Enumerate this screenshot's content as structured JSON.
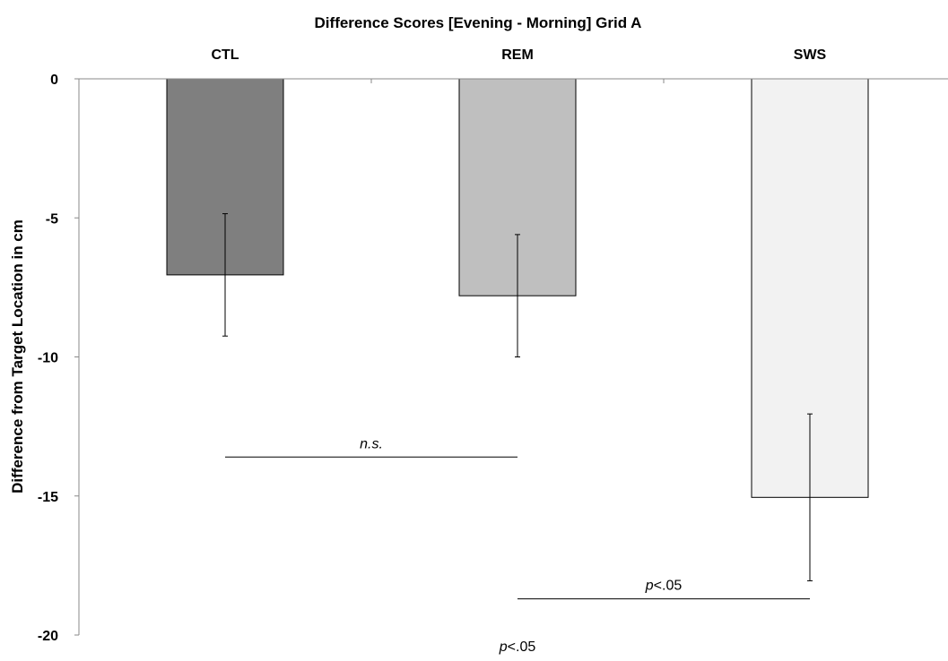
{
  "chart_data": {
    "type": "bar",
    "title": "Difference Scores [Evening - Morning]  Grid  A",
    "ylabel": "Difference from Target Location in cm",
    "xlabel": "",
    "categories": [
      "CTL",
      "REM",
      "SWS"
    ],
    "values": [
      -7.05,
      -7.8,
      -15.05
    ],
    "error": [
      2.2,
      2.2,
      3.0
    ],
    "colors": [
      "#7f7f7f",
      "#bfbfbf",
      "#f2f2f2"
    ],
    "ylim": [
      -20,
      0
    ],
    "yticks": [
      0,
      -5,
      -10,
      -15,
      -20
    ],
    "category_axis_position": "top",
    "grid": false,
    "annotations": [
      {
        "id": "ns",
        "italic": "n.s.",
        "rest": "",
        "from": "CTL",
        "to": "REM",
        "y": -13.6
      },
      {
        "id": "p1",
        "italic": "p",
        "rest": "<.05",
        "from": "REM",
        "to": "SWS",
        "y": -18.7
      },
      {
        "id": "p2",
        "italic": "p",
        "rest": "<.05",
        "from": "REM",
        "to": "REM",
        "y": -20.2
      }
    ]
  }
}
